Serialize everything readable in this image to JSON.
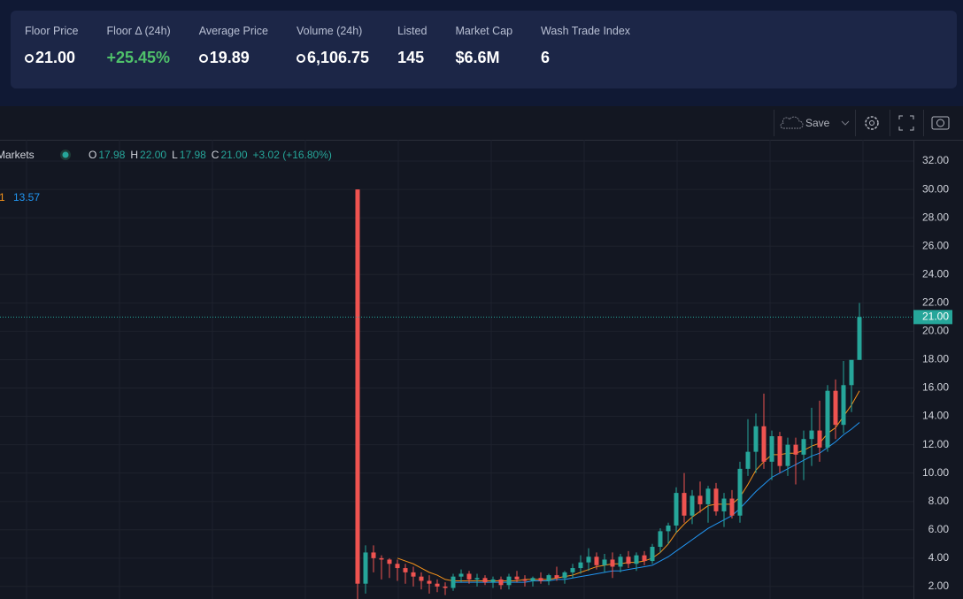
{
  "stats": [
    {
      "label": "Floor Price",
      "value": "21.00",
      "icon": true
    },
    {
      "label": "Floor Δ (24h)",
      "value": "+25.45%",
      "positive": true
    },
    {
      "label": "Average Price",
      "value": "19.89",
      "icon": true
    },
    {
      "label": "Volume (24h)",
      "value": "6,106.75",
      "icon": true
    },
    {
      "label": "Listed",
      "value": "145"
    },
    {
      "label": "Market Cap",
      "value": "$6.6M"
    },
    {
      "label": "Wash Trade Index",
      "value": "6"
    }
  ],
  "toolbar": {
    "save": "Save"
  },
  "chart_data": {
    "type": "candlestick",
    "legend": {
      "symbol": "Markets",
      "ohlc": [
        {
          "key": "O",
          "value": "17.98"
        },
        {
          "key": "H",
          "value": "22.00"
        },
        {
          "key": "L",
          "value": "17.98"
        },
        {
          "key": "C",
          "value": "21.00"
        }
      ],
      "change": "+3.02 (+16.80%)",
      "ma_prefix": "1",
      "ma_value": "13.57"
    },
    "up_color": "#26a69a",
    "down_color": "#ef5350",
    "ylim": [
      1.12,
      33.5
    ],
    "yticks": [
      {
        "value": 2,
        "label": "2.00"
      },
      {
        "value": 4,
        "label": "4.00"
      },
      {
        "value": 6,
        "label": "6.00"
      },
      {
        "value": 8,
        "label": "8.00"
      },
      {
        "value": 10,
        "label": "10.00"
      },
      {
        "value": 12,
        "label": "12.00"
      },
      {
        "value": 14,
        "label": "14.00"
      },
      {
        "value": 16,
        "label": "16.00"
      },
      {
        "value": 18,
        "label": "18.00"
      },
      {
        "value": 20,
        "label": "20.00"
      },
      {
        "value": 22,
        "label": "22.00"
      },
      {
        "value": 24,
        "label": "24.00"
      },
      {
        "value": 26,
        "label": "26.00"
      },
      {
        "value": 28,
        "label": "28.00"
      },
      {
        "value": 30,
        "label": "30.00"
      },
      {
        "value": 32,
        "label": "32.00"
      }
    ],
    "grid": true,
    "price_label": {
      "value": 21,
      "label": "21.00"
    },
    "candles": [
      [
        30,
        30,
        1.1,
        2.2
      ],
      [
        2.2,
        4.9,
        1.5,
        4.4
      ],
      [
        4.4,
        4.9,
        3,
        4.0
      ],
      [
        4.0,
        4.2,
        2.5,
        3.9
      ],
      [
        3.9,
        4.0,
        2.6,
        3.6
      ],
      [
        3.6,
        3.9,
        2.4,
        3.3
      ],
      [
        3.3,
        3.6,
        2.2,
        3.0
      ],
      [
        3.0,
        3.4,
        2.0,
        2.7
      ],
      [
        2.7,
        3.0,
        1.8,
        2.4
      ],
      [
        2.4,
        2.8,
        1.5,
        2.2
      ],
      [
        2.2,
        2.5,
        1.6,
        2.0
      ],
      [
        2.0,
        2.3,
        1.4,
        1.9
      ],
      [
        1.9,
        2.9,
        1.7,
        2.7
      ],
      [
        2.7,
        3.2,
        2.3,
        2.9
      ],
      [
        2.9,
        3.1,
        2.2,
        2.5
      ],
      [
        2.5,
        2.9,
        2.0,
        2.6
      ],
      [
        2.6,
        2.8,
        2.1,
        2.3
      ],
      [
        2.3,
        2.7,
        1.9,
        2.5
      ],
      [
        2.5,
        2.7,
        1.8,
        2.1
      ],
      [
        2.1,
        2.9,
        1.8,
        2.7
      ],
      [
        2.7,
        3.1,
        2.3,
        2.5
      ],
      [
        2.5,
        2.8,
        2.0,
        2.4
      ],
      [
        2.4,
        2.7,
        2.0,
        2.6
      ],
      [
        2.6,
        3.0,
        2.2,
        2.4
      ],
      [
        2.4,
        2.9,
        2.1,
        2.8
      ],
      [
        2.8,
        3.4,
        2.4,
        2.6
      ],
      [
        2.6,
        3.1,
        2.2,
        3.0
      ],
      [
        3.0,
        3.6,
        2.6,
        3.3
      ],
      [
        3.3,
        4.2,
        2.9,
        3.7
      ],
      [
        3.7,
        4.7,
        3.1,
        4.1
      ],
      [
        4.1,
        4.4,
        3.2,
        3.5
      ],
      [
        3.5,
        4.3,
        3.0,
        3.9
      ],
      [
        3.9,
        4.4,
        2.6,
        3.4
      ],
      [
        3.4,
        4.3,
        3.0,
        4.1
      ],
      [
        4.1,
        4.5,
        3.3,
        3.6
      ],
      [
        3.6,
        4.4,
        3.1,
        4.2
      ],
      [
        4.2,
        4.5,
        3.5,
        3.8
      ],
      [
        3.8,
        5.0,
        3.6,
        4.8
      ],
      [
        4.8,
        6.1,
        4.4,
        5.9
      ],
      [
        5.9,
        6.5,
        5.0,
        6.3
      ],
      [
        6.3,
        9.0,
        5.8,
        8.6
      ],
      [
        8.6,
        10,
        6.5,
        7.0
      ],
      [
        7.0,
        8.8,
        6.4,
        8.4
      ],
      [
        8.4,
        9.4,
        7.2,
        7.8
      ],
      [
        7.8,
        9.1,
        6.5,
        8.9
      ],
      [
        8.9,
        9.3,
        7.0,
        7.3
      ],
      [
        7.3,
        8.6,
        6.2,
        8.2
      ],
      [
        8.2,
        8.8,
        6.8,
        7.0
      ],
      [
        7.0,
        10.8,
        6.5,
        10.3
      ],
      [
        10.3,
        13.8,
        9.8,
        11.5
      ],
      [
        11.5,
        14.2,
        10.0,
        13.3
      ],
      [
        13.3,
        15.6,
        10.3,
        10.8
      ],
      [
        10.8,
        13.0,
        9.5,
        12.6
      ],
      [
        12.6,
        12.9,
        10.0,
        10.5
      ],
      [
        10.5,
        12.5,
        9.8,
        12.0
      ],
      [
        12.0,
        12.5,
        9.2,
        11.3
      ],
      [
        11.3,
        13.0,
        9.5,
        12.4
      ],
      [
        12.4,
        14.6,
        10.5,
        13.0
      ],
      [
        13.0,
        15.1,
        10.8,
        11.8
      ],
      [
        11.8,
        16.2,
        11.5,
        15.8
      ],
      [
        15.8,
        16.6,
        12.4,
        13.4
      ],
      [
        13.4,
        17.9,
        12.8,
        16.2
      ],
      [
        16.2,
        17.9,
        14.3,
        17.98
      ],
      [
        17.98,
        22.0,
        17.98,
        21.0
      ]
    ],
    "series": [
      {
        "color": "#f7931a",
        "values": [
          null,
          null,
          null,
          null,
          null,
          4.0,
          3.8,
          3.6,
          3.3,
          3.0,
          2.8,
          2.5,
          2.4,
          2.4,
          2.4,
          2.4,
          2.4,
          2.4,
          2.4,
          2.4,
          2.4,
          2.5,
          2.5,
          2.5,
          2.5,
          2.6,
          2.7,
          2.8,
          3.0,
          3.2,
          3.4,
          3.5,
          3.6,
          3.6,
          3.7,
          3.7,
          3.8,
          4.0,
          4.4,
          5.0,
          5.8,
          6.4,
          6.9,
          7.3,
          7.7,
          7.8,
          7.8,
          7.8,
          8.3,
          9.2,
          10.2,
          10.8,
          11.3,
          11.3,
          11.4,
          11.4,
          11.6,
          11.9,
          12.1,
          12.8,
          13.2,
          14.0,
          14.8,
          15.8
        ]
      },
      {
        "color": "#2196f3",
        "values": [
          null,
          null,
          null,
          null,
          null,
          null,
          null,
          null,
          null,
          null,
          null,
          null,
          2.3,
          2.3,
          2.3,
          2.3,
          2.3,
          2.3,
          2.3,
          2.3,
          2.3,
          2.3,
          2.4,
          2.4,
          2.4,
          2.5,
          2.5,
          2.6,
          2.7,
          2.8,
          2.9,
          3.0,
          3.1,
          3.1,
          3.2,
          3.3,
          3.4,
          3.5,
          3.8,
          4.1,
          4.5,
          4.9,
          5.3,
          5.7,
          6.1,
          6.4,
          6.7,
          7.0,
          7.5,
          8.1,
          8.7,
          9.2,
          9.7,
          10.0,
          10.3,
          10.6,
          10.9,
          11.2,
          11.4,
          11.8,
          12.2,
          12.7,
          13.1,
          13.57
        ]
      }
    ]
  }
}
